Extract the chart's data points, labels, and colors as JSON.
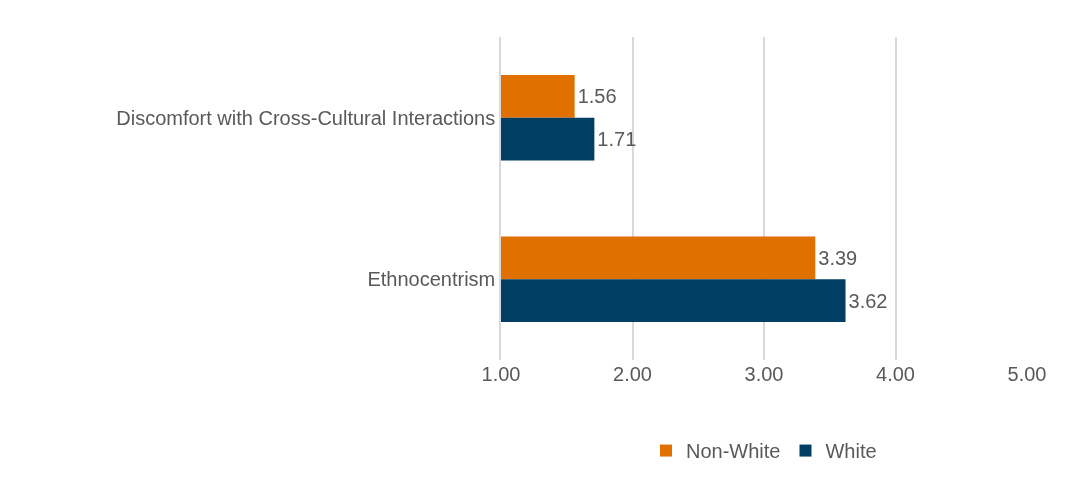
{
  "chart_data": {
    "type": "bar",
    "orientation": "horizontal",
    "categories": [
      "Discomfort with Cross-Cultural Interactions",
      "Ethnocentrism"
    ],
    "series": [
      {
        "name": "Non-White",
        "color": "#e07000",
        "values": [
          1.56,
          3.39
        ]
      },
      {
        "name": "White",
        "color": "#003f63",
        "values": [
          1.71,
          3.62
        ]
      }
    ],
    "xlim": [
      1,
      5
    ],
    "xticks": [
      {
        "value": 1,
        "label": "1.00"
      },
      {
        "value": 2,
        "label": "2.00"
      },
      {
        "value": 3,
        "label": "3.00"
      },
      {
        "value": 4,
        "label": "4.00"
      },
      {
        "value": 5,
        "label": "5.00"
      }
    ],
    "grid": "x",
    "legend": "bottom",
    "data_labels": true
  }
}
